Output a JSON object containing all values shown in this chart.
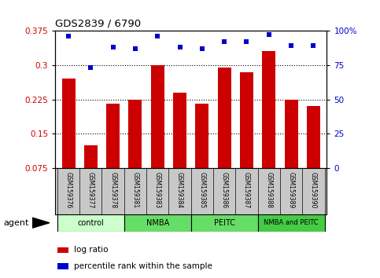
{
  "title": "GDS2839 / 6790",
  "samples": [
    "GSM159376",
    "GSM159377",
    "GSM159378",
    "GSM159381",
    "GSM159383",
    "GSM159384",
    "GSM159385",
    "GSM159386",
    "GSM159387",
    "GSM159388",
    "GSM159389",
    "GSM159390"
  ],
  "log_ratio": [
    0.27,
    0.125,
    0.215,
    0.225,
    0.3,
    0.24,
    0.215,
    0.295,
    0.285,
    0.33,
    0.225,
    0.21
  ],
  "percentile_rank": [
    96,
    73,
    88,
    87,
    96,
    88,
    87,
    92,
    92,
    97,
    89,
    89
  ],
  "bar_color": "#cc0000",
  "dot_color": "#0000cc",
  "ylim_left": [
    0.075,
    0.375
  ],
  "ylim_right": [
    0,
    100
  ],
  "yticks_left": [
    0.075,
    0.15,
    0.225,
    0.3,
    0.375
  ],
  "yticks_right": [
    0,
    25,
    50,
    75,
    100
  ],
  "group_labels": [
    "control",
    "NMBA",
    "PEITC",
    "NMBA and PEITC"
  ],
  "group_ranges": [
    [
      0,
      3
    ],
    [
      3,
      6
    ],
    [
      6,
      9
    ],
    [
      9,
      12
    ]
  ],
  "group_colors": [
    "#ccffcc",
    "#66dd66",
    "#66dd66",
    "#44cc44"
  ],
  "legend_items": [
    "log ratio",
    "percentile rank within the sample"
  ],
  "agent_label": "agent",
  "label_area_color": "#c8c8c8",
  "dotted_lines": [
    0.15,
    0.225,
    0.3
  ]
}
